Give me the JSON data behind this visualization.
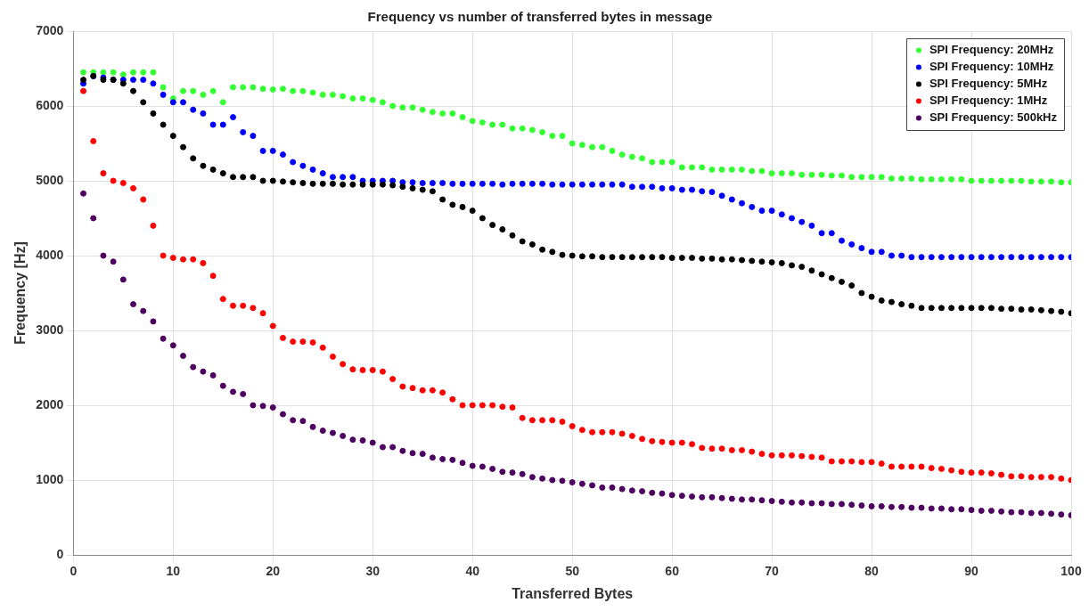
{
  "chart_data": {
    "type": "scatter",
    "title": "Frequency vs number of transferred bytes in message",
    "xlabel": "Transferred Bytes",
    "ylabel": "Frequency [Hz]",
    "x": [
      1,
      2,
      3,
      4,
      5,
      6,
      7,
      8,
      9,
      10,
      11,
      12,
      13,
      14,
      15,
      16,
      17,
      18,
      19,
      20,
      21,
      22,
      23,
      24,
      25,
      26,
      27,
      28,
      29,
      30,
      31,
      32,
      33,
      34,
      35,
      36,
      37,
      38,
      39,
      40,
      41,
      42,
      43,
      44,
      45,
      46,
      47,
      48,
      49,
      50,
      51,
      52,
      53,
      54,
      55,
      56,
      57,
      58,
      59,
      60,
      61,
      62,
      63,
      64,
      65,
      66,
      67,
      68,
      69,
      70,
      71,
      72,
      73,
      74,
      75,
      76,
      77,
      78,
      79,
      80,
      81,
      82,
      83,
      84,
      85,
      86,
      87,
      88,
      89,
      90,
      91,
      92,
      93,
      94,
      95,
      96,
      97,
      98,
      99,
      100
    ],
    "xlim": [
      0,
      100
    ],
    "xticks": [
      0,
      10,
      20,
      30,
      40,
      50,
      60,
      70,
      80,
      90,
      100
    ],
    "ylim": [
      0,
      7000
    ],
    "yticks": [
      0,
      1000,
      2000,
      3000,
      4000,
      5000,
      6000,
      7000
    ],
    "grid": true,
    "legend": "top right",
    "marker": "circle",
    "series": [
      {
        "name": "SPI Frequency: 20MHz",
        "color": "#33ff33",
        "values": [
          6450,
          6450,
          6450,
          6450,
          6420,
          6450,
          6450,
          6450,
          6250,
          6100,
          6200,
          6200,
          6150,
          6200,
          6050,
          6250,
          6250,
          6250,
          6230,
          6220,
          6230,
          6200,
          6200,
          6180,
          6150,
          6150,
          6130,
          6100,
          6100,
          6080,
          6050,
          6000,
          5980,
          5980,
          5950,
          5920,
          5900,
          5900,
          5850,
          5800,
          5780,
          5750,
          5750,
          5700,
          5700,
          5680,
          5650,
          5600,
          5600,
          5500,
          5480,
          5450,
          5450,
          5400,
          5350,
          5320,
          5300,
          5250,
          5250,
          5250,
          5180,
          5180,
          5180,
          5150,
          5150,
          5150,
          5150,
          5130,
          5130,
          5100,
          5100,
          5100,
          5080,
          5080,
          5080,
          5070,
          5070,
          5050,
          5050,
          5050,
          5050,
          5030,
          5030,
          5030,
          5020,
          5020,
          5020,
          5020,
          5020,
          5000,
          5000,
          5000,
          5000,
          5000,
          5000,
          4990,
          4990,
          4990,
          4980,
          4980
        ]
      },
      {
        "name": "SPI Frequency: 10MHz",
        "color": "#0000ff",
        "values": [
          6300,
          6400,
          6380,
          6350,
          6350,
          6350,
          6350,
          6300,
          6150,
          6050,
          6050,
          5950,
          5900,
          5750,
          5750,
          5850,
          5650,
          5600,
          5400,
          5400,
          5350,
          5250,
          5200,
          5150,
          5100,
          5050,
          5050,
          5050,
          5000,
          5000,
          5000,
          5000,
          4980,
          4980,
          4970,
          4970,
          4970,
          4960,
          4960,
          4960,
          4960,
          4960,
          4950,
          4960,
          4960,
          4960,
          4960,
          4950,
          4950,
          4950,
          4950,
          4950,
          4950,
          4950,
          4950,
          4920,
          4920,
          4920,
          4900,
          4900,
          4880,
          4880,
          4860,
          4850,
          4800,
          4750,
          4700,
          4650,
          4600,
          4600,
          4550,
          4500,
          4450,
          4400,
          4300,
          4300,
          4200,
          4150,
          4100,
          4050,
          4050,
          4000,
          4000,
          3980,
          3980,
          3980,
          3980,
          3980,
          3980,
          3980,
          3980,
          3980,
          3980,
          3980,
          3980,
          3980,
          3980,
          3980,
          3980,
          3980
        ]
      },
      {
        "name": "SPI Frequency: 5MHz",
        "color": "#000000",
        "values": [
          6350,
          6400,
          6350,
          6350,
          6300,
          6200,
          6050,
          5900,
          5750,
          5600,
          5450,
          5300,
          5200,
          5150,
          5100,
          5050,
          5050,
          5050,
          5000,
          5000,
          4990,
          4980,
          4970,
          4960,
          4960,
          4960,
          4950,
          4950,
          4950,
          4950,
          4950,
          4940,
          4920,
          4900,
          4880,
          4860,
          4750,
          4680,
          4650,
          4600,
          4500,
          4410,
          4350,
          4270,
          4190,
          4150,
          4080,
          4050,
          4010,
          4000,
          3990,
          3990,
          3980,
          3980,
          3980,
          3980,
          3980,
          3980,
          3980,
          3970,
          3970,
          3970,
          3960,
          3960,
          3950,
          3950,
          3940,
          3930,
          3920,
          3910,
          3900,
          3870,
          3850,
          3800,
          3750,
          3700,
          3650,
          3600,
          3500,
          3450,
          3400,
          3380,
          3350,
          3330,
          3300,
          3300,
          3300,
          3300,
          3300,
          3300,
          3300,
          3300,
          3290,
          3290,
          3280,
          3280,
          3270,
          3260,
          3250,
          3230
        ]
      },
      {
        "name": "SPI Frequency: 1MHz",
        "color": "#ff0000",
        "values": [
          6200,
          5530,
          5100,
          5000,
          4970,
          4900,
          4750,
          4400,
          4000,
          3970,
          3950,
          3950,
          3900,
          3730,
          3420,
          3330,
          3330,
          3300,
          3230,
          3060,
          2900,
          2850,
          2850,
          2840,
          2770,
          2650,
          2550,
          2480,
          2470,
          2470,
          2450,
          2350,
          2250,
          2230,
          2200,
          2200,
          2170,
          2080,
          2000,
          2000,
          2000,
          2000,
          1980,
          1970,
          1830,
          1800,
          1800,
          1800,
          1780,
          1720,
          1670,
          1640,
          1640,
          1640,
          1620,
          1590,
          1550,
          1520,
          1510,
          1500,
          1500,
          1480,
          1430,
          1420,
          1420,
          1400,
          1400,
          1380,
          1350,
          1330,
          1330,
          1330,
          1320,
          1310,
          1300,
          1250,
          1250,
          1250,
          1240,
          1240,
          1220,
          1180,
          1180,
          1180,
          1180,
          1160,
          1150,
          1130,
          1110,
          1100,
          1100,
          1090,
          1070,
          1050,
          1050,
          1040,
          1040,
          1040,
          1020,
          1000
        ]
      },
      {
        "name": "SPI Frequency: 500kHz",
        "color": "#4d0060",
        "values": [
          4830,
          4500,
          4000,
          3920,
          3680,
          3350,
          3260,
          3120,
          2890,
          2800,
          2660,
          2510,
          2450,
          2400,
          2260,
          2180,
          2150,
          2000,
          1990,
          1970,
          1880,
          1800,
          1790,
          1710,
          1660,
          1630,
          1590,
          1540,
          1530,
          1500,
          1440,
          1440,
          1390,
          1360,
          1350,
          1300,
          1280,
          1270,
          1230,
          1190,
          1180,
          1150,
          1110,
          1100,
          1080,
          1040,
          1020,
          1000,
          990,
          970,
          950,
          930,
          900,
          900,
          880,
          860,
          850,
          830,
          820,
          800,
          790,
          780,
          770,
          770,
          760,
          750,
          740,
          740,
          730,
          720,
          710,
          700,
          700,
          690,
          690,
          680,
          680,
          670,
          660,
          650,
          650,
          640,
          640,
          630,
          630,
          620,
          620,
          610,
          610,
          600,
          590,
          590,
          580,
          570,
          570,
          560,
          560,
          550,
          540,
          530
        ]
      }
    ]
  }
}
